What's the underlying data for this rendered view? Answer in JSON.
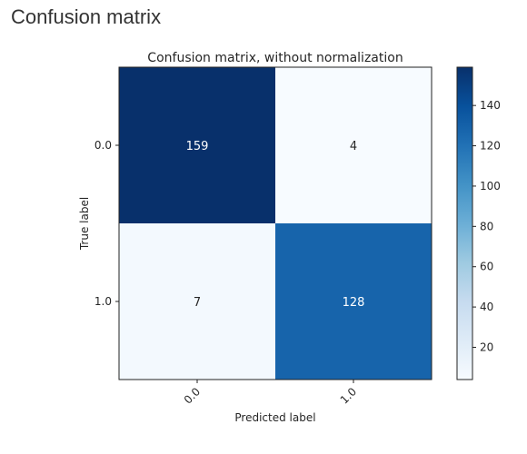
{
  "page": {
    "heading": "Confusion matrix"
  },
  "chart_data": {
    "type": "heatmap",
    "title": "Confusion matrix, without normalization",
    "xlabel": "Predicted label",
    "ylabel": "True label",
    "x_categories": [
      "0.0",
      "1.0"
    ],
    "y_categories": [
      "0.0",
      "1.0"
    ],
    "values": [
      [
        159,
        4
      ],
      [
        7,
        128
      ]
    ],
    "colormap": "Blues",
    "colorbar": {
      "min": 4,
      "max": 159,
      "ticks": [
        20,
        40,
        60,
        80,
        100,
        120,
        140
      ]
    },
    "grid": false,
    "colors": {
      "cmap_low": "#f7fbff",
      "cmap_mid": "#6baed6",
      "cmap_high": "#08306b",
      "text_light": "#ffffff",
      "text_dark": "#262626"
    }
  }
}
